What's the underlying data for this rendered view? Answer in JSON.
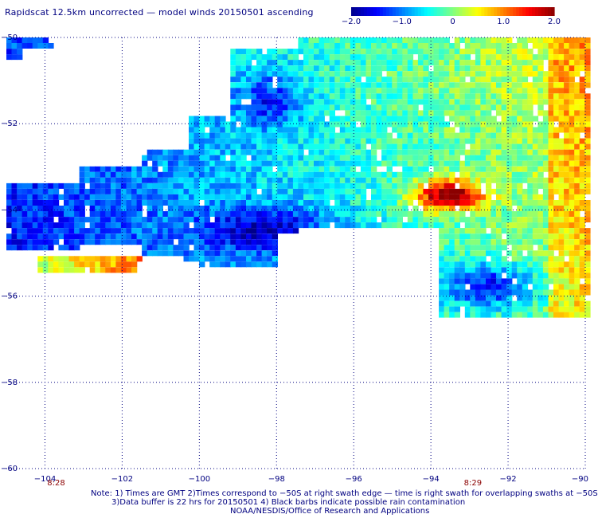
{
  "title": "Rapidscat 12.5km uncorrected — model winds 20150501 ascending",
  "colorbar": {
    "tick_labels": [
      "−2.0",
      "−1.0",
      "0",
      "1.0",
      "2.0"
    ],
    "tick_values": [
      -2.0,
      -1.0,
      0,
      1.0,
      2.0
    ],
    "range": [
      -2.0,
      2.0
    ],
    "colors": [
      "#00008b",
      "#0000ff",
      "#0080ff",
      "#00ffff",
      "#80ff80",
      "#ffff00",
      "#ff8000",
      "#ff0000",
      "#8b0000"
    ]
  },
  "map": {
    "lon_range": [
      -105,
      -90
    ],
    "lat_range": [
      -60,
      -50
    ],
    "lon_ticks": [
      {
        "value": -104,
        "label": "−104"
      },
      {
        "value": -102,
        "label": "−102"
      },
      {
        "value": -100,
        "label": "−100"
      },
      {
        "value": -98,
        "label": "−98"
      },
      {
        "value": -96,
        "label": "−96"
      },
      {
        "value": -94,
        "label": "−94"
      },
      {
        "value": -92,
        "label": "−92"
      },
      {
        "value": -90,
        "label": "−90"
      }
    ],
    "lat_ticks": [
      {
        "value": -50,
        "label": "−50"
      },
      {
        "value": -52,
        "label": "−52"
      },
      {
        "value": -54,
        "label": "−54"
      },
      {
        "value": -56,
        "label": "−56"
      },
      {
        "value": -58,
        "label": "−58"
      },
      {
        "value": -60,
        "label": "−60"
      }
    ],
    "grid": true,
    "time_labels": [
      {
        "lon": -104.0,
        "text": "8:28"
      },
      {
        "lon": -93.2,
        "text": "8:29"
      }
    ]
  },
  "notes": {
    "line1": "Note: 1) Times are GMT 2)Times correspond to −50S at right swath edge — time is right swath for overlapping swaths at −50S",
    "line2": "3)Data buffer is 22 hrs for 20150501 4) Black barbs indicate possible rain contamination",
    "line3": "NOAA/NESDIS/Office of Research and Applications"
  }
}
